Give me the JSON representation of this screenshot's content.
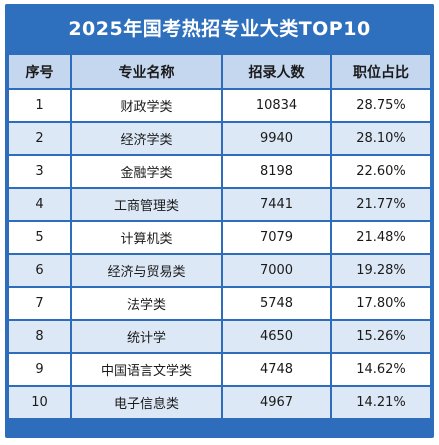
{
  "title": "2025年国考热招专业大类TOP10",
  "headers": [
    "序号",
    "专业名称",
    "招录人数",
    "职位占比"
  ],
  "rows": [
    {
      "rank": "1",
      "major": "财政学类",
      "count": "10834",
      "ratio": "28.75%"
    },
    {
      "rank": "2",
      "major": "经济学类",
      "count": "9940",
      "ratio": "28.10%"
    },
    {
      "rank": "3",
      "major": "金融学类",
      "count": "8198",
      "ratio": "22.60%"
    },
    {
      "rank": "4",
      "major": "工商管理类",
      "count": "7441",
      "ratio": "21.77%"
    },
    {
      "rank": "5",
      "major": "计算机类",
      "count": "7079",
      "ratio": "21.48%"
    },
    {
      "rank": "6",
      "major": "经济与贸易类",
      "count": "7000",
      "ratio": "19.28%"
    },
    {
      "rank": "7",
      "major": "法学类",
      "count": "5748",
      "ratio": "17.80%"
    },
    {
      "rank": "8",
      "major": "统计学",
      "count": "4650",
      "ratio": "15.26%"
    },
    {
      "rank": "9",
      "major": "中国语言文学类",
      "count": "4748",
      "ratio": "14.62%"
    },
    {
      "rank": "10",
      "major": "电子信息类",
      "count": "4967",
      "ratio": "14.21%"
    }
  ]
}
